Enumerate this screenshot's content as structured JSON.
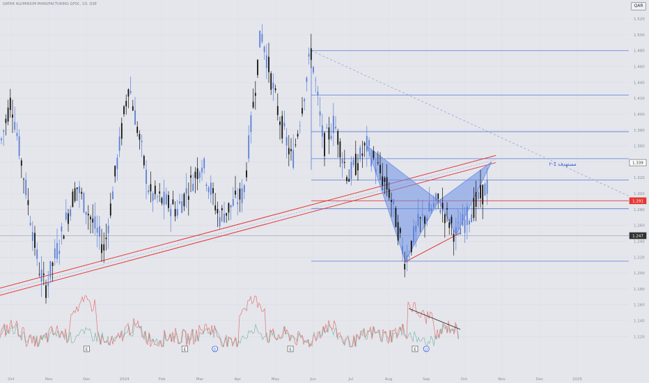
{
  "header": {
    "title": "QATAR ALUMINIUM MANUFACTURING QPSC, 1D, QSE",
    "currency": "QAR"
  },
  "annotations": {
    "target_label": "مستهدف 1-٢"
  },
  "price_labels": {
    "target": "1.339",
    "resistance": "1.291",
    "last": "1.247"
  },
  "colors": {
    "background": "#e4e6ec",
    "candle_up": "#5b7fd6",
    "candle_down": "#111111",
    "channel": "#e53935",
    "pattern_fill": "#6c8fe6",
    "fib_line": "#5a7ad6",
    "resistance_line": "#e53935",
    "osc_1": "#e57373",
    "osc_2": "#7fb8a8"
  },
  "chart_data": {
    "type": "candlestick",
    "x_labels": [
      "Oct",
      "Nov",
      "Dec",
      "2024",
      "Feb",
      "Mar",
      "Apr",
      "May",
      "Jun",
      "Jul",
      "Aug",
      "Sep",
      "Oct",
      "Nov",
      "Dec",
      "2025"
    ],
    "y_ticks": [
      "1.520",
      "1.500",
      "1.480",
      "1.460",
      "1.440",
      "1.420",
      "1.400",
      "1.380",
      "1.360",
      "1.340",
      "1.320",
      "1.300",
      "1.280",
      "1.260",
      "1.240",
      "1.220",
      "1.200",
      "1.180",
      "1.160",
      "1.140",
      "1.120"
    ],
    "ylim": [
      1.108,
      1.528
    ],
    "key_prices": {
      "target": 1.339,
      "resistance": 1.291,
      "last": 1.247
    },
    "fib_levels": [
      1.48,
      1.424,
      1.378,
      1.344,
      1.317,
      1.281,
      1.215
    ],
    "event_markers": [
      {
        "label": "E",
        "position": 2
      },
      {
        "label": "E",
        "position": 4.6
      },
      {
        "label": "D",
        "position": 5.4
      },
      {
        "label": "E",
        "position": 7.4
      },
      {
        "label": "E",
        "position": 10.7
      },
      {
        "label": "D",
        "position": 11.0
      }
    ]
  }
}
